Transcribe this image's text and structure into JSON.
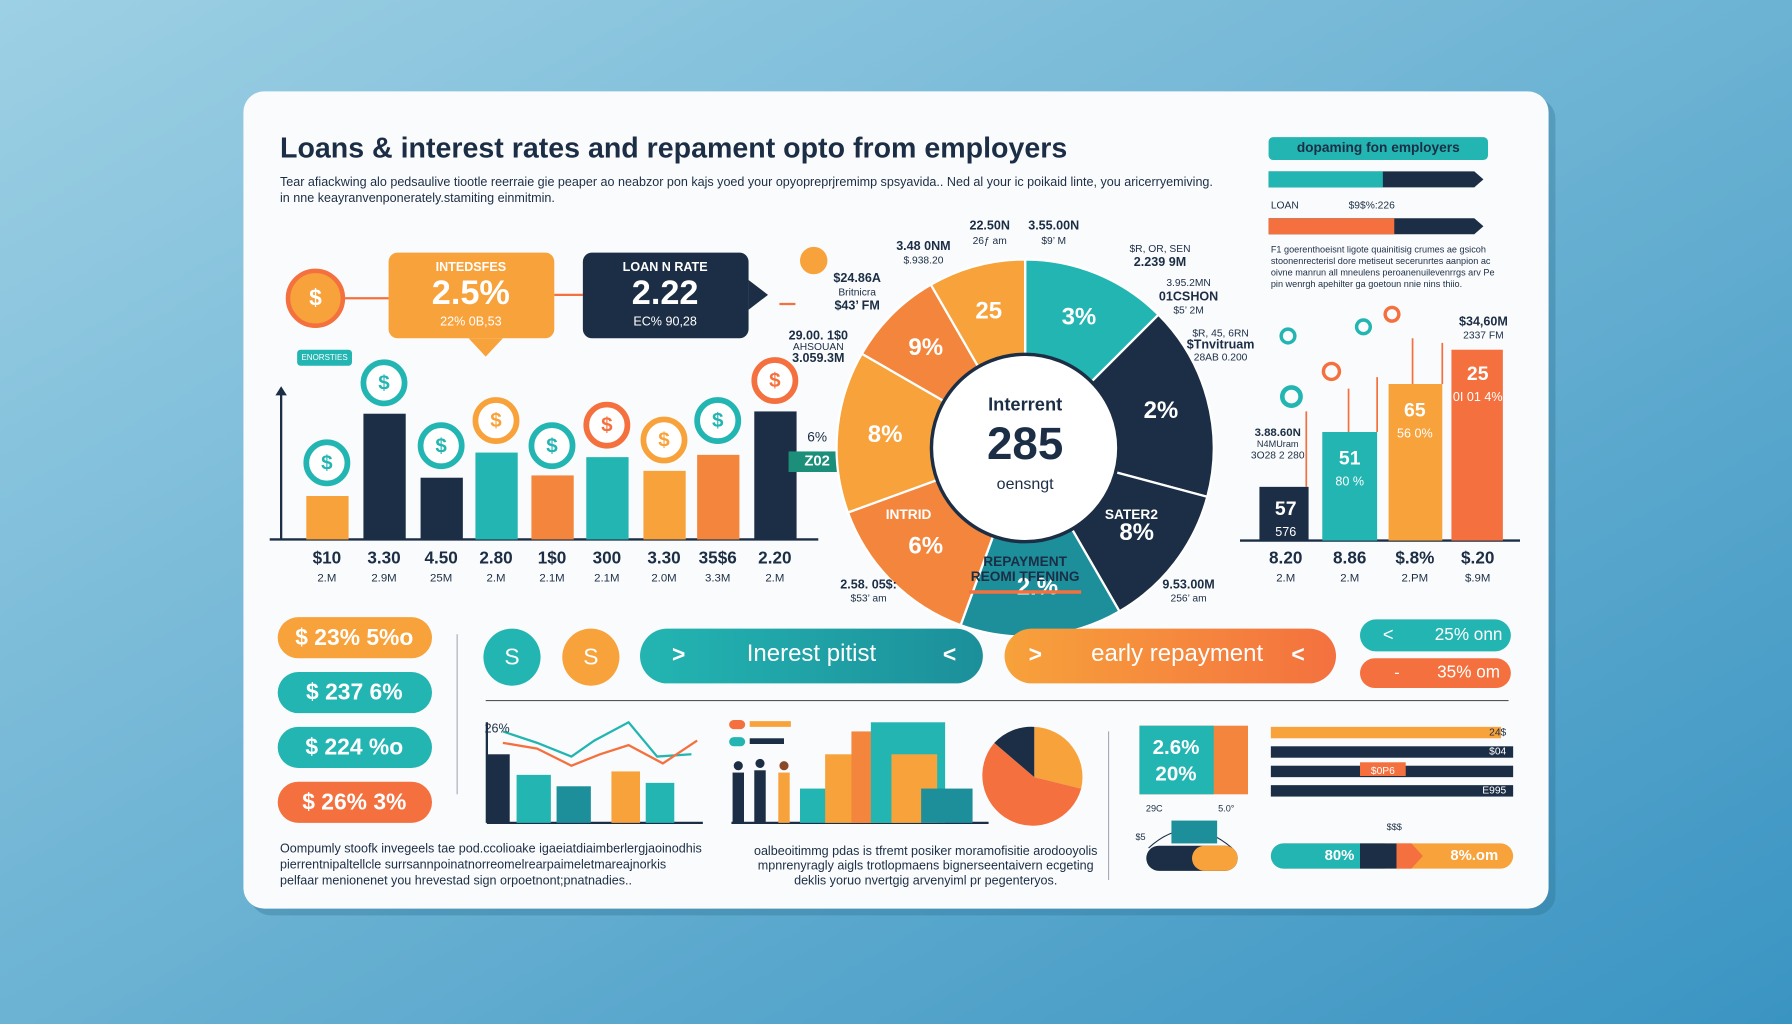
{
  "header": {
    "title": "Loans & interest  rates and  repament opto from employers",
    "intro": [
      "Tear afiackwing alo pedsaulive tiootle reerraie gie peaper ao neabzor pon kajs yoed your opyopreprjremimp spsyavida.. Ned al your ic poikaid linte, you aricerryemiving.",
      "in nne keayranvenponerately.stamiting einmitmin."
    ]
  },
  "callouts": [
    {
      "title": "INTEDSFES",
      "value": "2.5%",
      "sub": "22% 0B,53"
    },
    {
      "title": "LOAN N RATE",
      "value": "2.22",
      "sub": "EC% 90,28"
    }
  ],
  "left_chart": {
    "tag": "ENORSTIES",
    "side": "6%",
    "badge": "Z02",
    "labels": [
      "$10",
      "3.30",
      "4.50",
      "2.80",
      "1$0",
      "300",
      "3.30",
      "35$6",
      "2.20"
    ],
    "sublabels": [
      "2.M",
      "2.9M",
      "25M",
      "2.M",
      "2.1M",
      "2.1M",
      "2.0M",
      "3.3M",
      "2.M"
    ]
  },
  "donut": {
    "center": [
      "Interrent",
      "285",
      "oensngt"
    ],
    "segments": [
      "25",
      "3%",
      "2%",
      "8%",
      "2.%",
      "6%",
      "8%",
      "9%"
    ],
    "segment_titles": [
      "SATER2",
      "INTRID"
    ],
    "bottom": [
      "REPAYMENT",
      "REOMI TFENING"
    ],
    "notes": [
      "22.50N",
      "26ƒ am",
      "3.55.00N",
      "$9’ M",
      "3.48 0NM",
      "$.938.20",
      "$24.86A",
      "Britnicra",
      "$43’ FM",
      "$R, OR, SEN",
      "2.239 9M",
      "3.95.2MN",
      "01CSHON",
      "$5’ 2M",
      "29.00. 1$0",
      "AHSOUAN",
      "3.059.3M",
      "$R, 45, 6RN",
      "$Tnvitruam",
      "28AB 0.200",
      "2.58. 05$:",
      "$53’ am",
      "9.53.00M",
      "256’ am"
    ]
  },
  "right_chart": {
    "title": "dopaming fon employers",
    "loan": "LOAN",
    "loan_value": "$9$%:226",
    "text": [
      "F1 goerenthoeisnt ligote quainitisig crumes ae gsicoh",
      "stoonenrecterisl dore metiseut secerunrtes aanpion ac",
      "oivne manrun all mneulens peroanenuilevenrrgs arv Pe",
      "pin wenrgh apehilter ga goetoun nnie nins thiio."
    ],
    "top_note": [
      "$34,60M",
      "2337 FM"
    ],
    "side_note": [
      "3.88.60N",
      "N4MUram",
      "3O28 2 280"
    ],
    "bars": [
      "57",
      "51",
      "65",
      "25"
    ],
    "bar_subs": [
      "576",
      "80 %",
      "56 0%",
      "0I 01 4%"
    ],
    "labels": [
      "8.20",
      "8.86",
      "$.8%",
      "$.20"
    ],
    "sublabels": [
      "2.M",
      "2.M",
      "2.PM",
      "$.9M"
    ]
  },
  "pills_left": [
    "$ 23% 5%o",
    "$ 237 6%",
    "$ 224 %o",
    "$ 26% 3%"
  ],
  "buttons": {
    "coins": [
      "S",
      "S"
    ],
    "interest": "Inerest pitist",
    "early": "early repayment",
    "right": [
      "25% onn",
      "35% om"
    ]
  },
  "bottom": {
    "left_text": [
      "Oompumly stoofk invegeels tae pod.ccolioake igaeiatdiaimberlergjaoinodhis",
      "pierrentnipaltellcle surrsannpoinatnorreomelrearpaimeletmareajnorkis",
      "pelfaar menionenet you hrevestad sign orpoetnont;pnatnadies.."
    ],
    "mid_text": [
      "oalbeoitimmg pdas is tfremt posiker moramofisitie arodooyolis",
      "mpnrenyragly aigls trotlopmaens bignerseentaivern ecgeting",
      "deklis yoruo nvertgig arvenyiml pr pegenteryos."
    ],
    "chart_label": "26%",
    "gauge": [
      "2.6%",
      "20%"
    ],
    "gauge_notes": [
      "29C",
      "5.0°",
      "$5"
    ],
    "bars": [
      "24$",
      "$04",
      "$0P6",
      "E995"
    ],
    "bars_note": "$$$",
    "progress": [
      "80%",
      "8%.om"
    ]
  }
}
